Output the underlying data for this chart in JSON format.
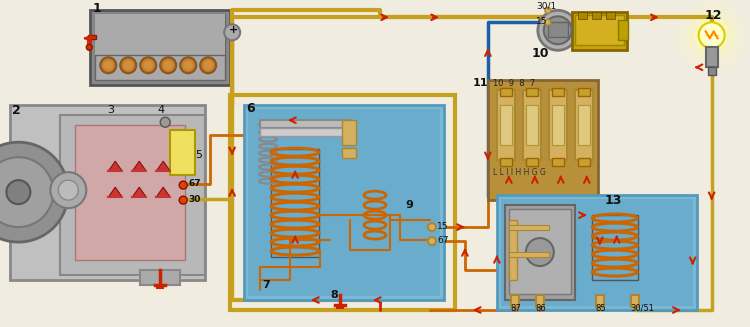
{
  "bg_color": "#f0ece0",
  "wire_yellow": "#c8a020",
  "wire_orange": "#cc6600",
  "wire_blue": "#1a5fa8",
  "wire_black": "#111111",
  "wire_red": "#cc2200",
  "arrow_red": "#cc2200",
  "blue_box": "#7ab8d4",
  "blue_box2": "#6aaccc",
  "fuse_brown": "#b8903a",
  "fuse_tan": "#d4b060",
  "alt_gray": "#b0b0b0",
  "bat_gray": "#888888",
  "relay_metal": "#999999"
}
